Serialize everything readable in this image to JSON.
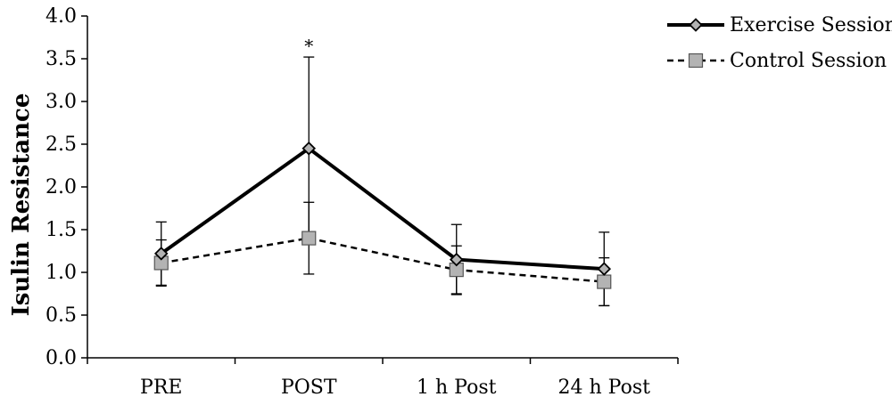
{
  "chart_data": {
    "type": "line",
    "ylabel": "Isulin Resistance",
    "ylim": [
      0,
      4
    ],
    "yticks": [
      "0.0",
      "0.5",
      "1.0",
      "1.5",
      "2.0",
      "2.5",
      "3.0",
      "3.5",
      "4.0"
    ],
    "categories": [
      "PRE",
      "POST",
      "1 h Post",
      "24 h Post"
    ],
    "legend_position": "top-right",
    "series": [
      {
        "name": "Exercise Session",
        "values": [
          1.22,
          2.45,
          1.15,
          1.04
        ],
        "error": [
          0.37,
          1.07,
          0.41,
          0.43
        ],
        "style": "solid",
        "marker": "diamond",
        "line_color": "#000000",
        "marker_color": "#b3b3b3"
      },
      {
        "name": "Control Session",
        "values": [
          1.11,
          1.4,
          1.03,
          0.89
        ],
        "error": [
          0.27,
          0.42,
          0.28,
          0.28
        ],
        "style": "dashed",
        "marker": "square",
        "line_color": "#000000",
        "marker_color": "#b3b3b3"
      }
    ],
    "annotations": [
      {
        "text": "*",
        "category": "POST",
        "y": 3.65
      }
    ]
  }
}
